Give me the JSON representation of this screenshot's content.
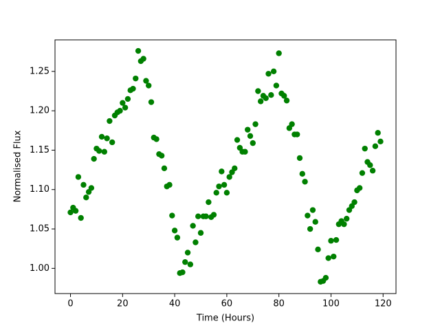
{
  "chart_data": {
    "type": "scatter",
    "x_label": "Time (Hours)",
    "y_label": "Normalised Flux",
    "color": "#008000",
    "xlim": [
      -5.95,
      124.95
    ],
    "ylim": [
      0.968,
      1.29
    ],
    "xticks": [
      0,
      20,
      40,
      60,
      80,
      100,
      120
    ],
    "yticks": [
      {
        "value": 1.0,
        "label": "1.00"
      },
      {
        "value": 1.05,
        "label": "1.05"
      },
      {
        "value": 1.1,
        "label": "1.10"
      },
      {
        "value": 1.15,
        "label": "1.15"
      },
      {
        "value": 1.2,
        "label": "1.20"
      },
      {
        "value": 1.25,
        "label": "1.25"
      }
    ],
    "x": [
      0,
      1,
      2,
      3,
      4,
      5,
      6,
      7,
      8,
      9,
      10,
      11,
      12,
      13,
      14,
      15,
      16,
      17,
      18,
      19,
      20,
      21,
      22,
      23,
      24,
      25,
      26,
      27,
      28,
      29,
      30,
      31,
      32,
      33,
      34,
      35,
      36,
      37,
      38,
      39,
      40,
      41,
      42,
      43,
      44,
      45,
      46,
      47,
      48,
      49,
      50,
      51,
      52,
      53,
      54,
      55,
      56,
      57,
      58,
      59,
      60,
      61,
      62,
      63,
      64,
      65,
      66,
      67,
      68,
      69,
      70,
      71,
      72,
      73,
      74,
      75,
      76,
      77,
      78,
      79,
      80,
      81,
      82,
      83,
      84,
      85,
      86,
      87,
      88,
      89,
      90,
      91,
      92,
      93,
      94,
      95,
      96,
      97,
      98,
      99,
      100,
      101,
      102,
      103,
      104,
      105,
      106,
      107,
      108,
      109,
      110,
      111,
      112,
      113,
      114,
      115,
      116,
      117,
      118,
      119
    ],
    "values": [
      1.071,
      1.077,
      1.073,
      1.116,
      1.064,
      1.106,
      1.09,
      1.097,
      1.102,
      1.139,
      1.152,
      1.149,
      1.167,
      1.148,
      1.165,
      1.187,
      1.16,
      1.194,
      1.198,
      1.2,
      1.21,
      1.204,
      1.215,
      1.226,
      1.228,
      1.241,
      1.276,
      1.263,
      1.266,
      1.238,
      1.232,
      1.211,
      1.166,
      1.164,
      1.145,
      1.143,
      1.127,
      1.104,
      1.106,
      1.067,
      1.048,
      1.039,
      0.994,
      0.995,
      1.008,
      1.02,
      1.005,
      1.054,
      1.033,
      1.066,
      1.045,
      1.066,
      1.066,
      1.084,
      1.065,
      1.068,
      1.096,
      1.104,
      1.123,
      1.106,
      1.096,
      1.116,
      1.122,
      1.127,
      1.163,
      1.153,
      1.148,
      1.148,
      1.176,
      1.168,
      1.159,
      1.183,
      1.225,
      1.212,
      1.219,
      1.216,
      1.247,
      1.22,
      1.25,
      1.232,
      1.273,
      1.222,
      1.219,
      1.213,
      1.178,
      1.183,
      1.17,
      1.17,
      1.14,
      1.12,
      1.11,
      1.067,
      1.05,
      1.074,
      1.059,
      1.024,
      0.983,
      0.984,
      0.988,
      1.013,
      1.035,
      1.015,
      1.036,
      1.056,
      1.06,
      1.056,
      1.063,
      1.074,
      1.079,
      1.084,
      1.099,
      1.102,
      1.121,
      1.152,
      1.135,
      1.131,
      1.124,
      1.155,
      1.172,
      1.161
    ]
  }
}
